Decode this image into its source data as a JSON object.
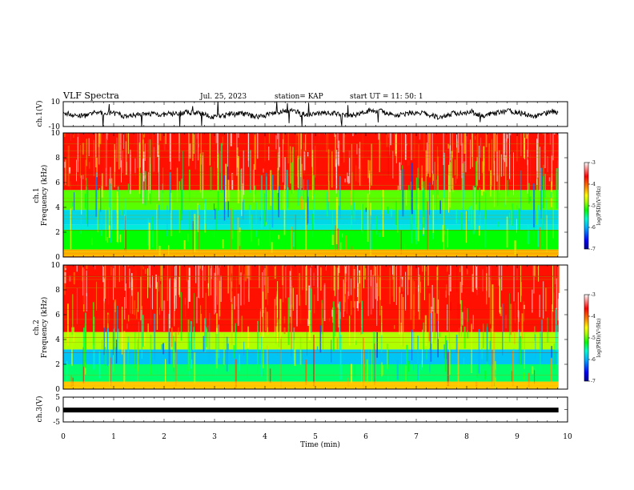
{
  "header": {
    "title": "VLF Spectra",
    "date": "Jul. 25, 2023",
    "station": "station= KAP",
    "start": "start UT =  11: 50: 1"
  },
  "chart_data": [
    {
      "id": "ch1-waveform",
      "type": "line",
      "ylabel": "ch.1(V)",
      "ylim": [
        -10,
        10
      ],
      "xlim": [
        0,
        10
      ],
      "yticks": [
        "10",
        "-10"
      ],
      "x_coverage_min": [
        0,
        9.82
      ]
    },
    {
      "id": "ch1-spectrogram",
      "type": "heatmap",
      "ylabel": "ch.1",
      "ylabel2": "Frequency (kHz)",
      "ylim": [
        0,
        10
      ],
      "xlim": [
        0,
        10
      ],
      "yticks": [
        "0",
        "2",
        "4",
        "6",
        "8",
        "10"
      ],
      "colorbar": {
        "label": "log(PSD)(V²/Hz)",
        "range": [
          -7,
          -3
        ],
        "ticks": [
          "-3",
          "-4",
          "-5",
          "-6",
          "-7"
        ]
      },
      "bands_khz": [
        {
          "from": 0,
          "to": 0.6,
          "level": -4.1
        },
        {
          "from": 0.6,
          "to": 2.2,
          "level": -5.2
        },
        {
          "from": 2.2,
          "to": 2.6,
          "level": -5.7
        },
        {
          "from": 2.6,
          "to": 3.8,
          "level": -5.8
        },
        {
          "from": 3.8,
          "to": 5.4,
          "level": -5.0
        },
        {
          "from": 5.4,
          "to": 10,
          "level": -3.7
        }
      ]
    },
    {
      "id": "ch2-spectrogram",
      "type": "heatmap",
      "ylabel": "ch.2",
      "ylabel2": "Frequency (kHz)",
      "ylim": [
        0,
        10
      ],
      "xlim": [
        0,
        10
      ],
      "yticks": [
        "0",
        "2",
        "4",
        "6",
        "8",
        "10"
      ],
      "colorbar": {
        "label": "log(PSD)(V²/Hz)",
        "range": [
          -7,
          -3
        ],
        "ticks": [
          "-3",
          "-4",
          "-5",
          "-6",
          "-7"
        ]
      },
      "bands_khz": [
        {
          "from": 0,
          "to": 0.6,
          "level": -4.3
        },
        {
          "from": 0.6,
          "to": 2.0,
          "level": -5.4
        },
        {
          "from": 2.0,
          "to": 3.2,
          "level": -5.9
        },
        {
          "from": 3.2,
          "to": 4.6,
          "level": -4.8
        },
        {
          "from": 4.6,
          "to": 10,
          "level": -3.7
        }
      ]
    },
    {
      "id": "ch3-waveform",
      "type": "line",
      "ylabel": "ch.3(V)",
      "ylim": [
        -5,
        5
      ],
      "xlim": [
        0,
        10
      ],
      "yticks": [
        "5",
        "0",
        "-5"
      ],
      "level_v": -0.2,
      "x_coverage_min": [
        0,
        9.82
      ]
    }
  ],
  "xaxis": {
    "label": "Time (min)",
    "ticks": [
      "0",
      "1",
      "2",
      "3",
      "4",
      "5",
      "6",
      "7",
      "8",
      "9",
      "10"
    ]
  },
  "colors": {
    "scale": [
      "#000090",
      "#0000ff",
      "#00b0ff",
      "#00ffd0",
      "#00ff00",
      "#b0ff00",
      "#ffff00",
      "#ff8000",
      "#ff0000",
      "#ffffff"
    ]
  }
}
